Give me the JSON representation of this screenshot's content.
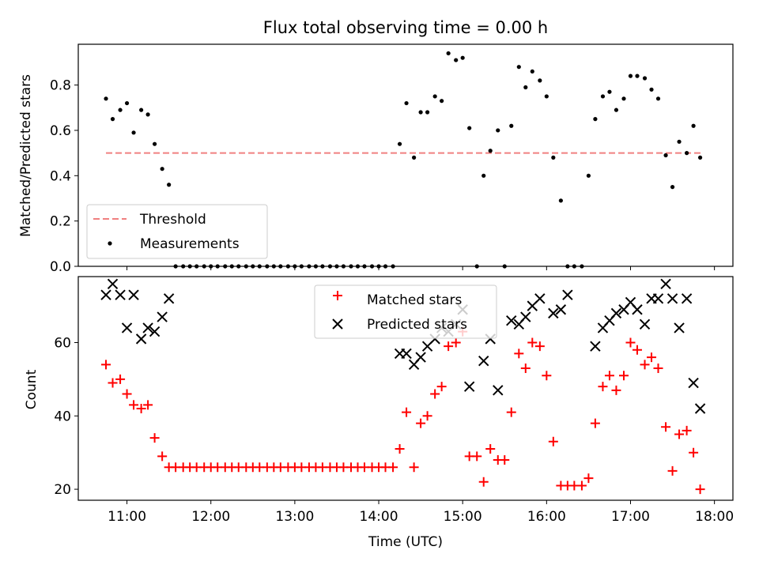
{
  "title": "Flux total observing time = 0.00 h",
  "colors": {
    "threshold": "#f08080",
    "measurements": "#000000",
    "matched": "#ff0000",
    "predicted": "#000000"
  },
  "chart_data": [
    {
      "type": "scatter",
      "ylabel": "Matched/Predicted stars",
      "ylim": [
        0,
        0.98
      ],
      "xlim": [
        10.42,
        18.22
      ],
      "grid": false,
      "legend_position": "lower-left",
      "yticks": [
        0.0,
        0.2,
        0.4,
        0.6,
        0.8
      ],
      "ytick_labels": [
        "0.0",
        "0.2",
        "0.4",
        "0.6",
        "0.8"
      ],
      "threshold": {
        "name": "Threshold",
        "value": 0.5,
        "x": [
          10.75,
          17.87
        ]
      },
      "series": [
        {
          "name": "Measurements",
          "x": [
            10.75,
            10.83,
            10.92,
            11.0,
            11.08,
            11.17,
            11.25,
            11.33,
            11.42,
            11.5,
            11.58,
            11.67,
            11.75,
            11.83,
            11.92,
            12.0,
            12.08,
            12.17,
            12.25,
            12.33,
            12.42,
            12.5,
            12.58,
            12.67,
            12.75,
            12.83,
            12.92,
            13.0,
            13.08,
            13.17,
            13.25,
            13.33,
            13.42,
            13.5,
            13.58,
            13.67,
            13.75,
            13.83,
            13.92,
            14.0,
            14.08,
            14.17,
            14.25,
            14.33,
            14.42,
            14.5,
            14.58,
            14.67,
            14.75,
            14.83,
            14.92,
            15.0,
            15.08,
            15.17,
            15.25,
            15.33,
            15.42,
            15.5,
            15.58,
            15.67,
            15.75,
            15.83,
            15.92,
            16.0,
            16.08,
            16.17,
            16.25,
            16.33,
            16.42,
            16.5,
            16.58,
            16.67,
            16.75,
            16.83,
            16.92,
            17.0,
            17.08,
            17.17,
            17.25,
            17.33,
            17.42,
            17.5,
            17.58,
            17.67,
            17.75,
            17.83
          ],
          "y": [
            0.74,
            0.65,
            0.69,
            0.72,
            0.59,
            0.69,
            0.67,
            0.54,
            0.43,
            0.36,
            0,
            0,
            0,
            0,
            0,
            0,
            0,
            0,
            0,
            0,
            0,
            0,
            0,
            0,
            0,
            0,
            0,
            0,
            0,
            0,
            0,
            0,
            0,
            0,
            0,
            0,
            0,
            0,
            0,
            0,
            0,
            0,
            0.54,
            0.72,
            0.48,
            0.68,
            0.68,
            0.75,
            0.73,
            0.94,
            0.91,
            0.92,
            0.61,
            0,
            0.4,
            0.51,
            0.6,
            0,
            0.62,
            0.88,
            0.79,
            0.86,
            0.82,
            0.75,
            0.48,
            0.29,
            0,
            0,
            0,
            0.4,
            0.65,
            0.75,
            0.77,
            0.69,
            0.74,
            0.84,
            0.84,
            0.83,
            0.78,
            0.74,
            0.49,
            0.35,
            0.55,
            0.5,
            0.62,
            0.48
          ]
        }
      ]
    },
    {
      "type": "scatter",
      "xlabel": "Time (UTC)",
      "ylabel": "Count",
      "ylim": [
        17,
        78
      ],
      "xlim": [
        10.42,
        18.22
      ],
      "grid": false,
      "legend_position": "top-center",
      "yticks": [
        20,
        40,
        60
      ],
      "ytick_labels": [
        "20",
        "40",
        "60"
      ],
      "xticks": [
        11,
        12,
        13,
        14,
        15,
        16,
        17,
        18
      ],
      "xtick_labels": [
        "11:00",
        "12:00",
        "13:00",
        "14:00",
        "15:00",
        "16:00",
        "17:00",
        "18:00"
      ],
      "series": [
        {
          "name": "Matched stars",
          "marker": "plus",
          "x": [
            10.75,
            10.83,
            10.92,
            11.0,
            11.08,
            11.17,
            11.25,
            11.33,
            11.42,
            11.5,
            11.58,
            11.67,
            11.75,
            11.83,
            11.92,
            12.0,
            12.08,
            12.17,
            12.25,
            12.33,
            12.42,
            12.5,
            12.58,
            12.67,
            12.75,
            12.83,
            12.92,
            13.0,
            13.08,
            13.17,
            13.25,
            13.33,
            13.42,
            13.5,
            13.58,
            13.67,
            13.75,
            13.83,
            13.92,
            14.0,
            14.08,
            14.17,
            14.25,
            14.33,
            14.42,
            14.5,
            14.58,
            14.67,
            14.75,
            14.83,
            14.92,
            15.0,
            15.08,
            15.17,
            15.25,
            15.33,
            15.42,
            15.5,
            15.58,
            15.67,
            15.75,
            15.83,
            15.92,
            16.0,
            16.08,
            16.17,
            16.25,
            16.33,
            16.42,
            16.5,
            16.58,
            16.67,
            16.75,
            16.83,
            16.92,
            17.0,
            17.08,
            17.17,
            17.25,
            17.33,
            17.42,
            17.5,
            17.58,
            17.67,
            17.75,
            17.83
          ],
          "y": [
            54,
            49,
            50,
            46,
            43,
            42,
            43,
            34,
            29,
            26,
            26,
            26,
            26,
            26,
            26,
            26,
            26,
            26,
            26,
            26,
            26,
            26,
            26,
            26,
            26,
            26,
            26,
            26,
            26,
            26,
            26,
            26,
            26,
            26,
            26,
            26,
            26,
            26,
            26,
            26,
            26,
            26,
            31,
            41,
            26,
            38,
            40,
            46,
            48,
            59,
            60,
            63,
            29,
            29,
            22,
            31,
            28,
            28,
            41,
            57,
            53,
            60,
            59,
            51,
            33,
            21,
            21,
            21,
            21,
            23,
            38,
            48,
            51,
            47,
            51,
            60,
            58,
            54,
            56,
            53,
            37,
            25,
            35,
            36,
            30,
            20
          ]
        },
        {
          "name": "Predicted stars",
          "marker": "x",
          "x": [
            10.75,
            10.83,
            10.92,
            11.0,
            11.08,
            11.17,
            11.25,
            11.33,
            11.42,
            11.5,
            14.25,
            14.33,
            14.42,
            14.5,
            14.58,
            14.67,
            14.75,
            14.83,
            14.92,
            15.0,
            15.08,
            15.25,
            15.33,
            15.42,
            15.58,
            15.67,
            15.75,
            15.83,
            15.92,
            16.08,
            16.17,
            16.25,
            16.58,
            16.67,
            16.75,
            16.83,
            16.92,
            17.0,
            17.08,
            17.17,
            17.25,
            17.33,
            17.42,
            17.5,
            17.58,
            17.67,
            17.75,
            17.83
          ],
          "y": [
            73,
            76,
            73,
            64,
            73,
            61,
            64,
            63,
            67,
            72,
            57,
            57,
            54,
            56,
            59,
            61,
            64,
            63,
            65,
            69,
            48,
            55,
            61,
            47,
            66,
            65,
            67,
            70,
            72,
            68,
            69,
            73,
            59,
            64,
            66,
            68,
            69,
            71,
            69,
            65,
            72,
            72,
            76,
            72,
            64,
            72,
            49,
            42
          ]
        }
      ]
    }
  ]
}
